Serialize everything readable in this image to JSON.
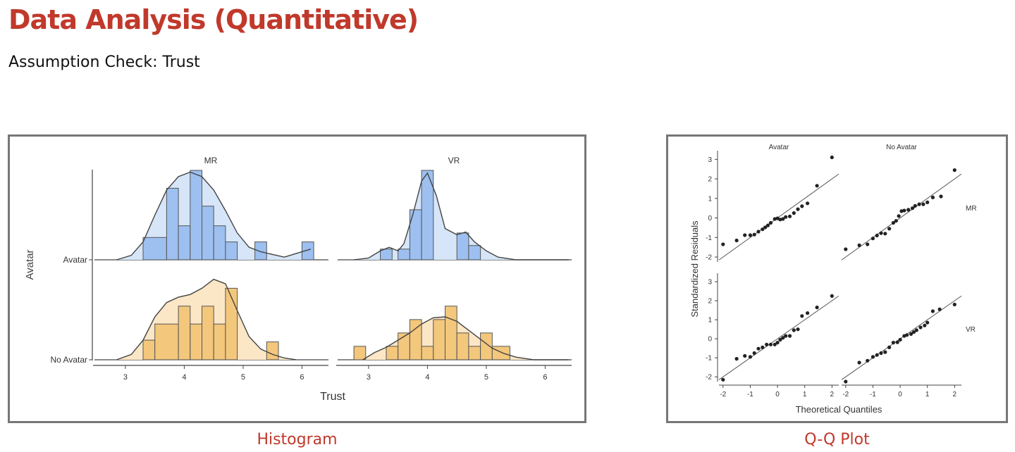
{
  "page": {
    "title": "Data Analysis (Quantitative)",
    "subtitle": "Assumption Check: Trust"
  },
  "captions": {
    "histogram": "Histogram",
    "qq": "Q-Q Plot"
  },
  "colors": {
    "title": "#c0392b",
    "avatar_fill": "#9dc0f0",
    "avatar_density": "#d6e5f8",
    "noavatar_fill": "#f3c77c",
    "noavatar_density": "#fbe6c6",
    "line": "#444444"
  },
  "chart_data": [
    {
      "type": "bar",
      "subtype": "histogram-with-density",
      "xlabel": "Trust",
      "ylabel": "Avatar",
      "x_ticks": [
        3,
        4,
        5,
        6
      ],
      "xlim": [
        2.45,
        6.45
      ],
      "columns": [
        "MR",
        "VR"
      ],
      "rows": [
        "Avatar",
        "No Avatar"
      ],
      "panels": [
        {
          "column": "MR",
          "row": "Avatar",
          "bins": [
            [
              3.3,
              3.7,
              0.25
            ],
            [
              3.7,
              3.9,
              0.8
            ],
            [
              3.9,
              4.1,
              0.38
            ],
            [
              4.1,
              4.3,
              1.0
            ],
            [
              4.3,
              4.5,
              0.6
            ],
            [
              4.5,
              4.7,
              0.38
            ],
            [
              4.7,
              4.9,
              0.2
            ],
            [
              4.9,
              5.2,
              0.0
            ],
            [
              5.2,
              5.4,
              0.2
            ],
            [
              5.4,
              6.0,
              0.0
            ],
            [
              6.0,
              6.2,
              0.2
            ]
          ],
          "density": [
            [
              2.85,
              0.0
            ],
            [
              3.1,
              0.05
            ],
            [
              3.3,
              0.2
            ],
            [
              3.5,
              0.5
            ],
            [
              3.7,
              0.78
            ],
            [
              3.9,
              0.93
            ],
            [
              4.1,
              0.98
            ],
            [
              4.3,
              0.93
            ],
            [
              4.5,
              0.78
            ],
            [
              4.7,
              0.55
            ],
            [
              4.9,
              0.3
            ],
            [
              5.1,
              0.14
            ],
            [
              5.3,
              0.09
            ],
            [
              5.5,
              0.06
            ],
            [
              5.7,
              0.03
            ],
            [
              5.9,
              0.07
            ],
            [
              6.15,
              0.12
            ]
          ]
        },
        {
          "column": "VR",
          "row": "Avatar",
          "bins": [
            [
              3.2,
              3.4,
              0.12
            ],
            [
              3.4,
              3.5,
              0.0
            ],
            [
              3.5,
              3.7,
              0.12
            ],
            [
              3.7,
              3.9,
              0.56
            ],
            [
              3.9,
              4.1,
              1.0
            ],
            [
              4.1,
              4.5,
              0.0
            ],
            [
              4.5,
              4.7,
              0.3
            ],
            [
              4.7,
              4.9,
              0.16
            ],
            [
              4.9,
              5.1,
              0.0
            ]
          ],
          "density": [
            [
              2.75,
              0.0
            ],
            [
              3.0,
              0.02
            ],
            [
              3.2,
              0.1
            ],
            [
              3.35,
              0.14
            ],
            [
              3.5,
              0.1
            ],
            [
              3.6,
              0.18
            ],
            [
              3.75,
              0.5
            ],
            [
              3.9,
              0.88
            ],
            [
              4.0,
              0.97
            ],
            [
              4.15,
              0.72
            ],
            [
              4.3,
              0.35
            ],
            [
              4.5,
              0.28
            ],
            [
              4.65,
              0.31
            ],
            [
              4.8,
              0.2
            ],
            [
              5.0,
              0.1
            ],
            [
              5.2,
              0.03
            ],
            [
              5.5,
              0.0
            ],
            [
              6.4,
              0.0
            ]
          ]
        },
        {
          "column": "MR",
          "row": "No Avatar",
          "bins": [
            [
              3.3,
              3.5,
              0.22
            ],
            [
              3.5,
              3.9,
              0.4
            ],
            [
              3.9,
              4.1,
              0.6
            ],
            [
              4.1,
              4.3,
              0.4
            ],
            [
              4.3,
              4.5,
              0.6
            ],
            [
              4.5,
              4.7,
              0.4
            ],
            [
              4.7,
              4.9,
              0.8
            ],
            [
              4.9,
              5.4,
              0.0
            ],
            [
              5.4,
              5.6,
              0.2
            ]
          ],
          "density": [
            [
              2.85,
              0.0
            ],
            [
              3.1,
              0.06
            ],
            [
              3.3,
              0.22
            ],
            [
              3.5,
              0.48
            ],
            [
              3.7,
              0.64
            ],
            [
              3.9,
              0.7
            ],
            [
              4.1,
              0.73
            ],
            [
              4.3,
              0.8
            ],
            [
              4.5,
              0.9
            ],
            [
              4.7,
              0.85
            ],
            [
              4.9,
              0.55
            ],
            [
              5.1,
              0.26
            ],
            [
              5.3,
              0.12
            ],
            [
              5.5,
              0.06
            ],
            [
              5.7,
              0.02
            ],
            [
              5.9,
              0.0
            ]
          ]
        },
        {
          "column": "VR",
          "row": "No Avatar",
          "bins": [
            [
              2.75,
              2.95,
              0.15
            ],
            [
              2.95,
              3.3,
              0.0
            ],
            [
              3.3,
              3.5,
              0.15
            ],
            [
              3.5,
              3.7,
              0.3
            ],
            [
              3.7,
              3.9,
              0.45
            ],
            [
              3.9,
              4.1,
              0.15
            ],
            [
              4.1,
              4.3,
              0.45
            ],
            [
              4.3,
              4.5,
              0.6
            ],
            [
              4.5,
              4.7,
              0.3
            ],
            [
              4.7,
              4.9,
              0.15
            ],
            [
              4.9,
              5.1,
              0.3
            ],
            [
              5.1,
              5.4,
              0.15
            ]
          ],
          "density": [
            [
              2.9,
              0.0
            ],
            [
              3.1,
              0.08
            ],
            [
              3.3,
              0.14
            ],
            [
              3.5,
              0.22
            ],
            [
              3.7,
              0.3
            ],
            [
              3.9,
              0.4
            ],
            [
              4.1,
              0.47
            ],
            [
              4.3,
              0.48
            ],
            [
              4.5,
              0.43
            ],
            [
              4.7,
              0.33
            ],
            [
              4.9,
              0.23
            ],
            [
              5.1,
              0.13
            ],
            [
              5.3,
              0.07
            ],
            [
              5.5,
              0.03
            ],
            [
              5.8,
              0.0
            ],
            [
              6.4,
              0.0
            ]
          ]
        }
      ]
    },
    {
      "type": "scatter",
      "subtype": "qq-plot",
      "xlabel": "Theoretical Quantiles",
      "ylabel": "Standardized Residuals",
      "xlim": [
        -2.15,
        2.25
      ],
      "ylim": [
        -2.25,
        3.3
      ],
      "x_ticks": [
        -2,
        -1,
        0,
        1,
        2
      ],
      "y_ticks": [
        -2,
        -1,
        0,
        1,
        2,
        3
      ],
      "columns": [
        "Avatar",
        "No Avatar"
      ],
      "rows": [
        "MR",
        "VR"
      ],
      "panels": [
        {
          "column": "Avatar",
          "row": "MR",
          "points": [
            [
              -2.0,
              -1.35
            ],
            [
              -1.5,
              -1.15
            ],
            [
              -1.2,
              -0.88
            ],
            [
              -1.0,
              -0.88
            ],
            [
              -0.85,
              -0.85
            ],
            [
              -0.7,
              -0.7
            ],
            [
              -0.55,
              -0.58
            ],
            [
              -0.45,
              -0.48
            ],
            [
              -0.35,
              -0.38
            ],
            [
              -0.25,
              -0.25
            ],
            [
              -0.1,
              -0.05
            ],
            [
              0.0,
              -0.02
            ],
            [
              0.1,
              -0.08
            ],
            [
              0.2,
              -0.05
            ],
            [
              0.3,
              0.05
            ],
            [
              0.45,
              0.08
            ],
            [
              0.6,
              0.25
            ],
            [
              0.75,
              0.45
            ],
            [
              0.9,
              0.6
            ],
            [
              1.1,
              0.75
            ],
            [
              1.45,
              1.65
            ],
            [
              2.0,
              3.1
            ]
          ]
        },
        {
          "column": "No Avatar",
          "row": "MR",
          "points": [
            [
              -2.0,
              -1.6
            ],
            [
              -1.5,
              -1.4
            ],
            [
              -1.2,
              -1.35
            ],
            [
              -1.0,
              -1.05
            ],
            [
              -0.85,
              -0.9
            ],
            [
              -0.7,
              -0.78
            ],
            [
              -0.55,
              -0.8
            ],
            [
              -0.4,
              -0.55
            ],
            [
              -0.25,
              -0.25
            ],
            [
              -0.15,
              -0.15
            ],
            [
              -0.05,
              0.1
            ],
            [
              0.05,
              0.35
            ],
            [
              0.15,
              0.38
            ],
            [
              0.3,
              0.42
            ],
            [
              0.45,
              0.5
            ],
            [
              0.55,
              0.62
            ],
            [
              0.7,
              0.7
            ],
            [
              0.85,
              0.7
            ],
            [
              1.0,
              0.8
            ],
            [
              1.2,
              1.05
            ],
            [
              1.5,
              1.1
            ],
            [
              2.0,
              2.45
            ]
          ]
        },
        {
          "column": "Avatar",
          "row": "VR",
          "points": [
            [
              -2.0,
              -2.15
            ],
            [
              -1.5,
              -1.05
            ],
            [
              -1.2,
              -0.9
            ],
            [
              -1.0,
              -0.95
            ],
            [
              -0.85,
              -0.75
            ],
            [
              -0.7,
              -0.52
            ],
            [
              -0.55,
              -0.45
            ],
            [
              -0.4,
              -0.3
            ],
            [
              -0.25,
              -0.3
            ],
            [
              -0.1,
              -0.3
            ],
            [
              0.0,
              -0.2
            ],
            [
              0.1,
              -0.05
            ],
            [
              0.2,
              0.05
            ],
            [
              0.3,
              0.15
            ],
            [
              0.45,
              0.15
            ],
            [
              0.6,
              0.45
            ],
            [
              0.75,
              0.5
            ],
            [
              0.9,
              1.2
            ],
            [
              1.1,
              1.35
            ],
            [
              1.45,
              1.65
            ],
            [
              2.0,
              2.25
            ]
          ]
        },
        {
          "column": "No Avatar",
          "row": "VR",
          "points": [
            [
              -2.0,
              -2.25
            ],
            [
              -1.5,
              -1.25
            ],
            [
              -1.2,
              -1.15
            ],
            [
              -1.0,
              -0.95
            ],
            [
              -0.85,
              -0.85
            ],
            [
              -0.7,
              -0.75
            ],
            [
              -0.55,
              -0.7
            ],
            [
              -0.4,
              -0.45
            ],
            [
              -0.25,
              -0.2
            ],
            [
              -0.1,
              -0.18
            ],
            [
              0.0,
              -0.05
            ],
            [
              0.15,
              0.15
            ],
            [
              0.25,
              0.2
            ],
            [
              0.4,
              0.25
            ],
            [
              0.5,
              0.35
            ],
            [
              0.6,
              0.45
            ],
            [
              0.75,
              0.6
            ],
            [
              0.9,
              0.7
            ],
            [
              1.0,
              0.85
            ],
            [
              1.2,
              1.45
            ],
            [
              1.45,
              1.55
            ],
            [
              2.0,
              1.8
            ]
          ]
        }
      ]
    }
  ]
}
